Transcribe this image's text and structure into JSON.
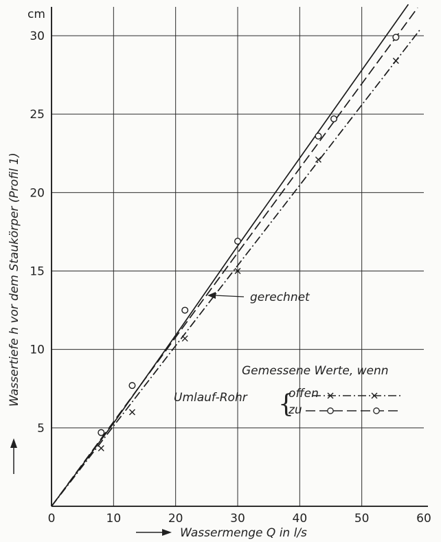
{
  "chart_data": {
    "type": "line",
    "xlabel": "Wassermenge Q in l/s",
    "ylabel": "Wassertiefe h vor dem Staukörper (Profil 1)",
    "y_unit": "cm",
    "x_ticks": [
      "0",
      "10",
      "20",
      "30",
      "40",
      "50",
      "60"
    ],
    "y_ticks": [
      "5",
      "10",
      "15",
      "20",
      "25",
      "30"
    ],
    "xlim": [
      0,
      60
    ],
    "ylim": [
      0,
      30
    ],
    "grid": true,
    "annotation": "gerechnet",
    "legend": {
      "title": "Gemessene Werte, wenn",
      "group_label": "Umlauf-Rohr",
      "entries": [
        "offen",
        "zu"
      ]
    },
    "series": [
      {
        "name": "gerechnet",
        "style": "solid",
        "x": [
          0,
          10,
          20,
          30,
          40,
          50,
          57.5
        ],
        "y": [
          0,
          5.3,
          10.9,
          16.6,
          22.2,
          27.8,
          32
        ]
      },
      {
        "name": "offen",
        "style": "dashdot",
        "marker": "x",
        "x": [
          8,
          13,
          21.5,
          30,
          43,
          55.5
        ],
        "y": [
          3.7,
          6.0,
          10.7,
          15.0,
          22.1,
          28.4
        ]
      },
      {
        "name": "zu",
        "style": "dashed",
        "marker": "o",
        "x": [
          8,
          13,
          21.5,
          30,
          43,
          45.5,
          55.5
        ],
        "y": [
          4.7,
          7.7,
          12.5,
          16.9,
          23.6,
          24.7,
          29.9
        ]
      }
    ]
  }
}
